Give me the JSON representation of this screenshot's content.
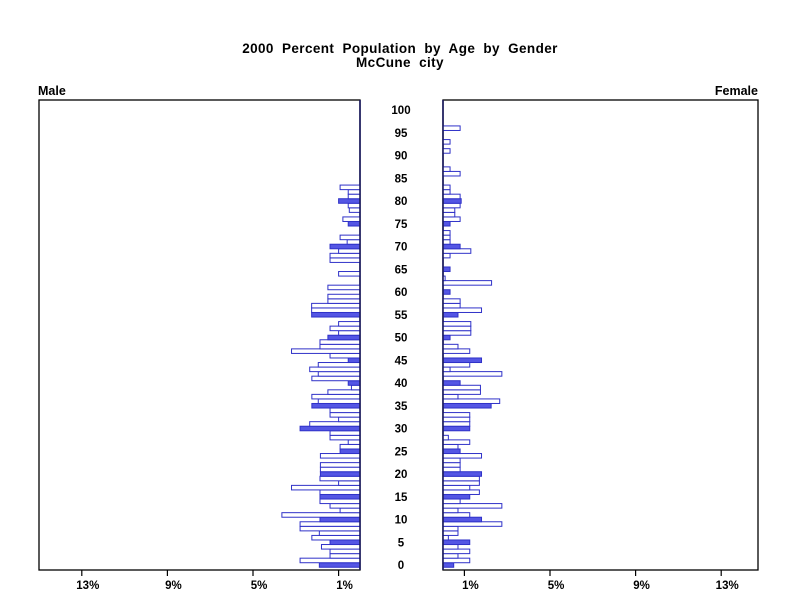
{
  "title": {
    "line1": "2000 Percent Population by Age by Gender",
    "line2": "McCune city"
  },
  "side_labels": {
    "left": "Male",
    "right": "Female"
  },
  "chart_data": {
    "type": "bar",
    "variant": "population-pyramid",
    "title": "2000 Percent Population by Age by Gender",
    "subtitle": "McCune city",
    "age_axis": {
      "min": 0,
      "max": 100,
      "tick_step": 5
    },
    "age_tick_labels": [
      "0",
      "5",
      "10",
      "15",
      "20",
      "25",
      "30",
      "35",
      "40",
      "45",
      "50",
      "55",
      "60",
      "65",
      "70",
      "75",
      "80",
      "85",
      "90",
      "95",
      "100"
    ],
    "xlim": [
      0,
      15
    ],
    "x_unit": "percent",
    "male_pct_ticks": [
      {
        "label": "13%",
        "value": 13
      },
      {
        "label": "9%",
        "value": 9
      },
      {
        "label": "5%",
        "value": 5
      },
      {
        "label": "1%",
        "value": 1
      }
    ],
    "female_pct_ticks": [
      {
        "label": "1%",
        "value": 1
      },
      {
        "label": "5%",
        "value": 5
      },
      {
        "label": "9%",
        "value": 9
      },
      {
        "label": "13%",
        "value": 13
      }
    ],
    "highlight_every": 5,
    "series": [
      {
        "name": "Male",
        "values": [
          1.9,
          2.8,
          1.4,
          1.4,
          1.8,
          1.4,
          2.25,
          1.9,
          2.8,
          2.8,
          1.87,
          3.65,
          0.93,
          1.4,
          1.87,
          1.87,
          1.87,
          3.2,
          1.0,
          1.87,
          1.85,
          1.85,
          1.85,
          0,
          1.85,
          0.93,
          0.93,
          0.55,
          1.4,
          1.4,
          2.8,
          2.35,
          1.0,
          1.4,
          1.4,
          2.25,
          1.95,
          2.25,
          1.5,
          0.4,
          0.55,
          2.25,
          1.95,
          2.35,
          1.95,
          0.55,
          1.4,
          3.2,
          1.87,
          1.87,
          1.5,
          1.0,
          1.4,
          1.0,
          0,
          2.26,
          2.26,
          2.26,
          1.5,
          1.5,
          0,
          1.5,
          0,
          0,
          1.0,
          0,
          0,
          1.4,
          1.4,
          1.0,
          1.4,
          0.6,
          0.93,
          0,
          0,
          0.55,
          0.8,
          0,
          0.5,
          0.55,
          1.0,
          0.55,
          0.55,
          0.93,
          0,
          0,
          0,
          0,
          0,
          0,
          0,
          0,
          0,
          0,
          0,
          0,
          0,
          0,
          0,
          0,
          0
        ]
      },
      {
        "name": "Female",
        "values": [
          0.5,
          1.25,
          0.7,
          1.25,
          0.7,
          1.25,
          0.25,
          0.7,
          0.7,
          2.75,
          1.8,
          1.25,
          0.7,
          2.75,
          0.8,
          1.25,
          1.7,
          1.25,
          1.7,
          1.7,
          1.8,
          0.8,
          0.8,
          0.8,
          1.8,
          0.8,
          0.7,
          1.25,
          0.25,
          0,
          1.25,
          1.25,
          1.25,
          1.25,
          0,
          2.25,
          2.65,
          0.7,
          1.75,
          1.75,
          0.8,
          0,
          2.75,
          0.33,
          1.25,
          1.8,
          0,
          1.25,
          0.7,
          0,
          0.33,
          1.3,
          1.3,
          1.3,
          0,
          0.7,
          1.8,
          0.8,
          0.8,
          0,
          0.33,
          0,
          2.27,
          0.1,
          0,
          0.33,
          0,
          0,
          0.33,
          1.3,
          0.8,
          0.33,
          0.33,
          0.33,
          0,
          0.33,
          0.8,
          0.55,
          0.55,
          0.8,
          0.85,
          0.8,
          0.33,
          0.33,
          0,
          0,
          0.8,
          0.33,
          0,
          0,
          0,
          0.33,
          0,
          0.33,
          0,
          0,
          0.8,
          0,
          0,
          0,
          0
        ]
      }
    ],
    "colors": {
      "highlight_bar_fill": "#5456e4",
      "regular_bar_fill": "#ffffff",
      "bar_outline": "#3032c8",
      "frame": "#000000",
      "text": "#000000",
      "background": "#ffffff"
    },
    "legend": "none",
    "grid": false
  }
}
